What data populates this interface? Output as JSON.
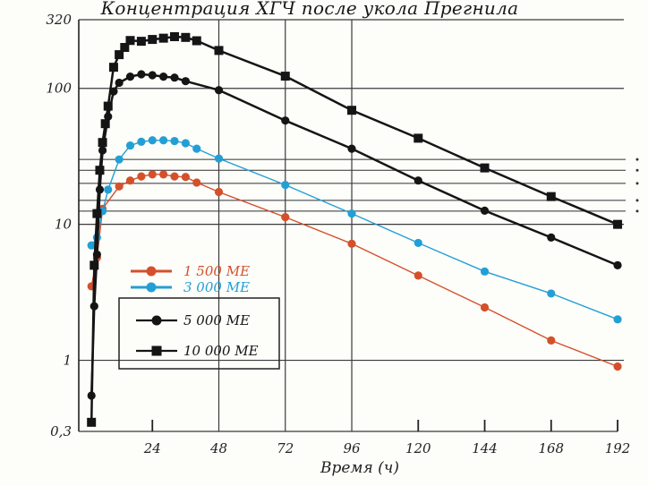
{
  "page": {
    "background": "#fdfdfa"
  },
  "chart_data": {
    "type": "line",
    "title": "Концентрация ХГЧ после укола Прегнила",
    "xlabel": "Время (ч)",
    "x_axis": {
      "min": 0,
      "max": 192,
      "tick_values": [
        24,
        48,
        72,
        96,
        120,
        144,
        168,
        192
      ],
      "tick_labels": [
        "24",
        "48",
        "72",
        "96",
        "120",
        "144",
        "168",
        "192"
      ],
      "vertical_gridlines_at": [
        48,
        72,
        96
      ],
      "short_ticks_at": [
        24,
        120,
        144,
        168,
        192
      ],
      "grid": "partial"
    },
    "y_axis": {
      "scale": "log",
      "min": 0.3,
      "max": 320,
      "tick_labels": [
        {
          "value": 320,
          "label": "320"
        },
        {
          "value": 100,
          "label": "100"
        },
        {
          "value": 10,
          "label": "10"
        },
        {
          "value": 1,
          "label": "1"
        },
        {
          "value": 0.3,
          "label": "0,3"
        }
      ],
      "major_gridlines_at": [
        320,
        100,
        10,
        1,
        0.3
      ],
      "minor_gridlines_at": [
        30,
        25,
        20,
        15,
        12.5
      ],
      "right_edge_dots_at": [
        30,
        25,
        20,
        15,
        12.5
      ]
    },
    "series": [
      {
        "id": "1500-me",
        "name": "1 500 МЕ",
        "color": "#d4502a",
        "marker": "circle",
        "line_width": 1.4,
        "points": [
          [
            2,
            3.5
          ],
          [
            4,
            5.7
          ],
          [
            6,
            13
          ],
          [
            12,
            19
          ],
          [
            16,
            21
          ],
          [
            20,
            22.5
          ],
          [
            24,
            23.3
          ],
          [
            28,
            23.3
          ],
          [
            32,
            22.5
          ],
          [
            36,
            22.3
          ],
          [
            40,
            20.3
          ],
          [
            48,
            17.3
          ],
          [
            72,
            11.3
          ],
          [
            96,
            7.2
          ],
          [
            120,
            4.2
          ],
          [
            144,
            2.45
          ],
          [
            168,
            1.4
          ],
          [
            192,
            0.9
          ]
        ]
      },
      {
        "id": "3000-me",
        "name": "3 000 МЕ",
        "color": "#249fd6",
        "marker": "circle",
        "line_width": 1.4,
        "points": [
          [
            2,
            7
          ],
          [
            4,
            8
          ],
          [
            6,
            12.5
          ],
          [
            8,
            18
          ],
          [
            12,
            30
          ],
          [
            16,
            38
          ],
          [
            20,
            40.5
          ],
          [
            24,
            41.5
          ],
          [
            28,
            41.5
          ],
          [
            32,
            41
          ],
          [
            36,
            39.5
          ],
          [
            40,
            36
          ],
          [
            48,
            30.5
          ],
          [
            72,
            19.5
          ],
          [
            96,
            12
          ],
          [
            120,
            7.3
          ],
          [
            144,
            4.5
          ],
          [
            168,
            3.1
          ],
          [
            192,
            2
          ]
        ]
      },
      {
        "id": "5000-me",
        "name": "5 000 МЕ",
        "color": "#151515",
        "marker": "circle",
        "line_width": 2.5,
        "points": [
          [
            2,
            0.55
          ],
          [
            3,
            2.5
          ],
          [
            4,
            6
          ],
          [
            5,
            18
          ],
          [
            6,
            35
          ],
          [
            8,
            62
          ],
          [
            10,
            95
          ],
          [
            12,
            110
          ],
          [
            16,
            122
          ],
          [
            20,
            127
          ],
          [
            24,
            125
          ],
          [
            28,
            122
          ],
          [
            32,
            120
          ],
          [
            36,
            113
          ],
          [
            48,
            97
          ],
          [
            72,
            58
          ],
          [
            96,
            36
          ],
          [
            120,
            21
          ],
          [
            144,
            12.6
          ],
          [
            168,
            8
          ],
          [
            192,
            5
          ]
        ]
      },
      {
        "id": "10000-me",
        "name": "10 000 МЕ",
        "color": "#151515",
        "marker": "square",
        "line_width": 2.5,
        "points": [
          [
            2,
            0.35
          ],
          [
            3,
            5
          ],
          [
            4,
            12
          ],
          [
            5,
            25
          ],
          [
            6,
            40
          ],
          [
            7,
            55
          ],
          [
            8,
            74
          ],
          [
            10,
            143
          ],
          [
            12,
            177
          ],
          [
            14,
            200
          ],
          [
            16,
            225
          ],
          [
            20,
            222
          ],
          [
            24,
            229
          ],
          [
            28,
            234
          ],
          [
            32,
            240
          ],
          [
            36,
            237
          ],
          [
            40,
            224
          ],
          [
            48,
            190
          ],
          [
            72,
            123
          ],
          [
            96,
            69
          ],
          [
            120,
            43
          ],
          [
            144,
            26
          ],
          [
            168,
            16
          ],
          [
            192,
            10
          ]
        ]
      }
    ],
    "legend": {
      "position": "inside-left",
      "entries": [
        {
          "id": "1500-me",
          "label": "1 500 МЕ",
          "color": "#d4502a",
          "marker": "circle",
          "boxed": false
        },
        {
          "id": "3000-me",
          "label": "3 000 МЕ",
          "color": "#249fd6",
          "marker": "circle",
          "boxed": false
        },
        {
          "id": "5000-me",
          "label": "5 000 МЕ",
          "color": "#151515",
          "marker": "circle",
          "boxed": true
        },
        {
          "id": "10000-me",
          "label": "10 000 МЕ",
          "color": "#151515",
          "marker": "square",
          "boxed": true
        }
      ]
    }
  }
}
